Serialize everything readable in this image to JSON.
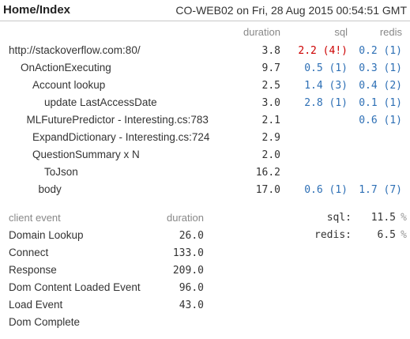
{
  "header": {
    "title": "Home/Index",
    "server_info": "CO-WEB02 on Fri, 28 Aug 2015 00:54:51 GMT"
  },
  "timings": {
    "columns": {
      "duration": "duration",
      "sql": "sql",
      "redis": "redis"
    },
    "rows": [
      {
        "label": "http://stackoverflow.com:80/",
        "depth": 0,
        "duration": "3.8",
        "sql": "2.2 (4!)",
        "sql_warn": true,
        "redis": "0.2 (1)"
      },
      {
        "label": "OnActionExecuting",
        "depth": 1,
        "duration": "9.7",
        "sql": "0.5 (1)",
        "sql_warn": false,
        "redis": "0.3 (1)"
      },
      {
        "label": "Account lookup",
        "depth": 2,
        "duration": "2.5",
        "sql": "1.4 (3)",
        "sql_warn": false,
        "redis": "0.4 (2)"
      },
      {
        "label": "update LastAccessDate",
        "depth": 3,
        "duration": "3.0",
        "sql": "2.8 (1)",
        "sql_warn": false,
        "redis": "0.1 (1)"
      },
      {
        "label": "MLFuturePredictor - Interesting.cs:783",
        "depth": 1.5,
        "duration": "2.1",
        "sql": "",
        "sql_warn": false,
        "redis": "0.6 (1)"
      },
      {
        "label": "ExpandDictionary - Interesting.cs:724",
        "depth": 2,
        "duration": "2.9",
        "sql": "",
        "sql_warn": false,
        "redis": ""
      },
      {
        "label": "QuestionSummary x N",
        "depth": 2,
        "duration": "2.0",
        "sql": "",
        "sql_warn": false,
        "redis": ""
      },
      {
        "label": "ToJson",
        "depth": 3,
        "duration": "16.2",
        "sql": "",
        "sql_warn": false,
        "redis": ""
      },
      {
        "label": "body",
        "depth": 2.5,
        "duration": "17.0",
        "sql": "0.6 (1)",
        "sql_warn": false,
        "redis": "1.7 (7)"
      }
    ]
  },
  "client_events": {
    "columns": {
      "event": "client event",
      "duration": "duration"
    },
    "rows": [
      {
        "label": "Domain Lookup",
        "duration": "26.0"
      },
      {
        "label": "Connect",
        "duration": "133.0"
      },
      {
        "label": "Response",
        "duration": "209.0"
      },
      {
        "label": "Dom Content Loaded Event",
        "duration": "96.0"
      },
      {
        "label": "Load Event",
        "duration": "43.0"
      },
      {
        "label": "Dom Complete",
        "duration": ""
      }
    ]
  },
  "summary": {
    "rows": [
      {
        "label": "sql:",
        "value": "11.5",
        "unit": "%"
      },
      {
        "label": "redis:",
        "value": "6.5",
        "unit": "%"
      }
    ]
  },
  "colors": {
    "sql_redis_value": "#2d6fb5",
    "warning": "#cc0000",
    "muted_header": "#888888"
  }
}
